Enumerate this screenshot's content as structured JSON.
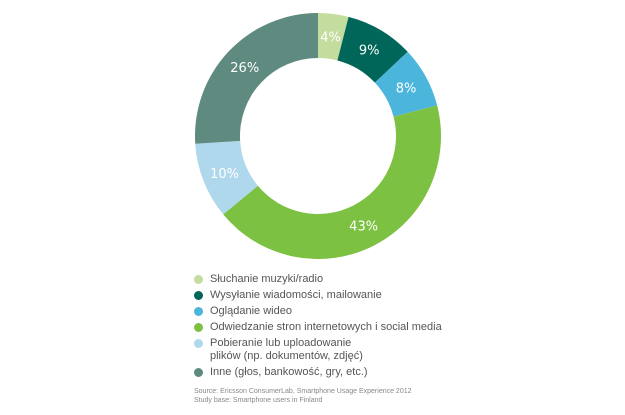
{
  "chart_data": {
    "type": "pie",
    "donut": true,
    "start": "top, clockwise",
    "series": [
      {
        "name": "Słuchanie muzyki/radio",
        "value": 4,
        "label": "4%",
        "color": "#c2dd9e"
      },
      {
        "name": "Wysyłanie wiadomości, mailowanie",
        "value": 9,
        "label": "9%",
        "color": "#00665a"
      },
      {
        "name": "Oglądanie wideo",
        "value": 8,
        "label": "8%",
        "color": "#4bb5dc"
      },
      {
        "name": "Odwiedzanie stron internetowych i social media",
        "value": 43,
        "label": "43%",
        "color": "#7dc142"
      },
      {
        "name_lines": [
          "Pobieranie lub uploadowanie",
          "plików (np. dokumentów, zdjęć)"
        ],
        "value": 10,
        "label": "10%",
        "color": "#b0d8ec"
      },
      {
        "name": "Inne (głos, bankowość, gry, etc.)",
        "value": 26,
        "label": "26%",
        "color": "#5f8a80"
      }
    ],
    "legend_placement": "bottom"
  },
  "source": {
    "line1": "Source: Ericsson ConsumerLab, Smartphone Usage Experience 2012",
    "line2": "Study base: Smartphone users in Finland"
  }
}
